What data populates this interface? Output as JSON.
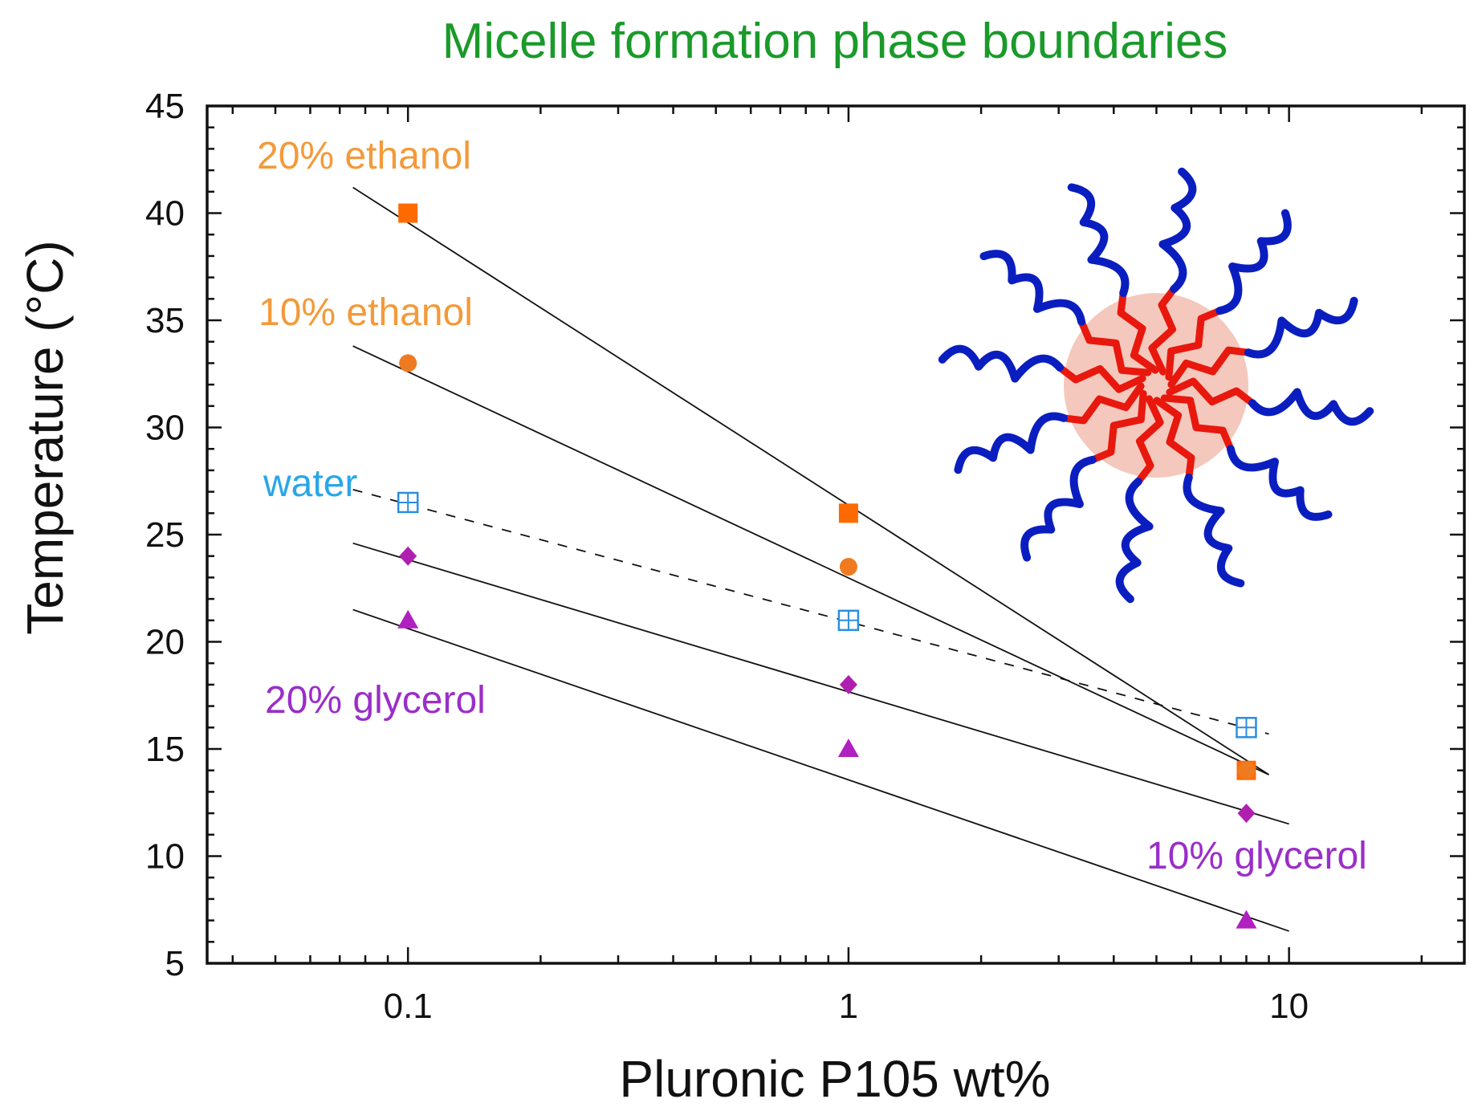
{
  "chart_data": {
    "type": "scatter",
    "title": "Micelle formation phase boundaries",
    "xlabel": "Pluronic P105 wt%",
    "ylabel": "Temperature (°C)",
    "xscale": "log",
    "xlim": [
      0.035,
      25
    ],
    "ylim": [
      5,
      45
    ],
    "xticks": [
      {
        "value": 0.1,
        "label": "0.1"
      },
      {
        "value": 1,
        "label": "1"
      },
      {
        "value": 10,
        "label": "10"
      }
    ],
    "yticks": [
      {
        "value": 5,
        "label": "5"
      },
      {
        "value": 10,
        "label": "10"
      },
      {
        "value": 15,
        "label": "15"
      },
      {
        "value": 20,
        "label": "20"
      },
      {
        "value": 25,
        "label": "25"
      },
      {
        "value": 30,
        "label": "30"
      },
      {
        "value": 35,
        "label": "35"
      },
      {
        "value": 40,
        "label": "40"
      },
      {
        "value": 45,
        "label": "45"
      }
    ],
    "series": [
      {
        "name": "20% ethanol",
        "label": "20% ethanol",
        "color": "#ff6a00",
        "label_color": "#f39a3a",
        "marker": "square",
        "x": [
          0.1,
          1,
          8
        ],
        "y": [
          40,
          26,
          14
        ],
        "fit": {
          "x": [
            0.075,
            9
          ],
          "y": [
            41.2,
            13.8
          ],
          "dashed": false
        }
      },
      {
        "name": "10% ethanol",
        "label": "10% ethanol",
        "color": "#f07a20",
        "label_color": "#f39a3a",
        "marker": "circle",
        "x": [
          0.1,
          1,
          8
        ],
        "y": [
          33,
          23.5,
          14
        ],
        "fit": {
          "x": [
            0.075,
            9
          ],
          "y": [
            33.8,
            13.8
          ],
          "dashed": false
        }
      },
      {
        "name": "water",
        "label": "water",
        "color": "#2a8ee0",
        "label_color": "#29a6e8",
        "marker": "square-cross",
        "x": [
          0.1,
          1,
          8
        ],
        "y": [
          26.5,
          21,
          16
        ],
        "fit": {
          "x": [
            0.075,
            9
          ],
          "y": [
            27.1,
            15.7
          ],
          "dashed": true
        }
      },
      {
        "name": "10% glycerol",
        "label": "10% glycerol",
        "color": "#b020b0",
        "label_color": "#9a2ec8",
        "marker": "diamond",
        "x": [
          0.1,
          1,
          8
        ],
        "y": [
          24,
          18,
          12
        ],
        "fit": {
          "x": [
            0.075,
            10
          ],
          "y": [
            24.6,
            11.5
          ],
          "dashed": false
        }
      },
      {
        "name": "20% glycerol",
        "label": "20% glycerol",
        "color": "#b020c0",
        "label_color": "#9a2ec8",
        "marker": "triangle",
        "x": [
          0.1,
          1,
          8
        ],
        "y": [
          21,
          15,
          7
        ],
        "fit": {
          "x": [
            0.075,
            10
          ],
          "y": [
            21.5,
            6.5
          ],
          "dashed": false
        }
      }
    ],
    "inset": {
      "description_name": "micelle-illustration",
      "core_color": "#f5c8bd",
      "core_chain_color": "#e8180e",
      "corona_color": "#0a1ec0"
    }
  }
}
